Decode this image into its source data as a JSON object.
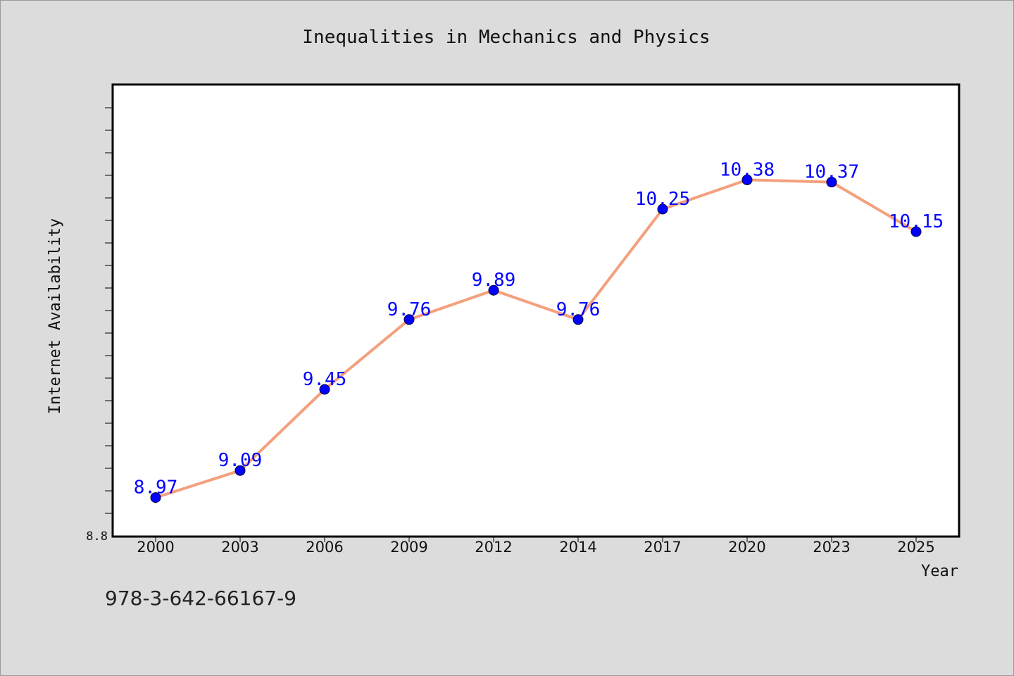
{
  "chart_data": {
    "type": "line",
    "title": "Inequalities in Mechanics and Physics",
    "xlabel": "Year",
    "ylabel": "Internet Availability",
    "categories": [
      "2000",
      "2003",
      "2006",
      "2009",
      "2012",
      "2014",
      "2017",
      "2020",
      "2023",
      "2025"
    ],
    "series": [
      {
        "values": [
          8.97,
          9.09,
          9.45,
          9.76,
          9.89,
          9.76,
          10.25,
          10.38,
          10.37,
          10.15
        ],
        "data_labels": [
          "8.97",
          "9.09",
          "9.45",
          "9.76",
          "9.89",
          "9.76",
          "10.25",
          "10.38",
          "10.37",
          "10.15"
        ],
        "line_color": "#f4a07e",
        "marker_color": "#0000ff"
      }
    ],
    "ylim": [
      8.8,
      10.8
    ],
    "y_tick_labels": [
      "8.8"
    ],
    "grid": false,
    "label_color": "#0000ff"
  },
  "footer": {
    "isbn": "978-3-642-66167-9"
  }
}
